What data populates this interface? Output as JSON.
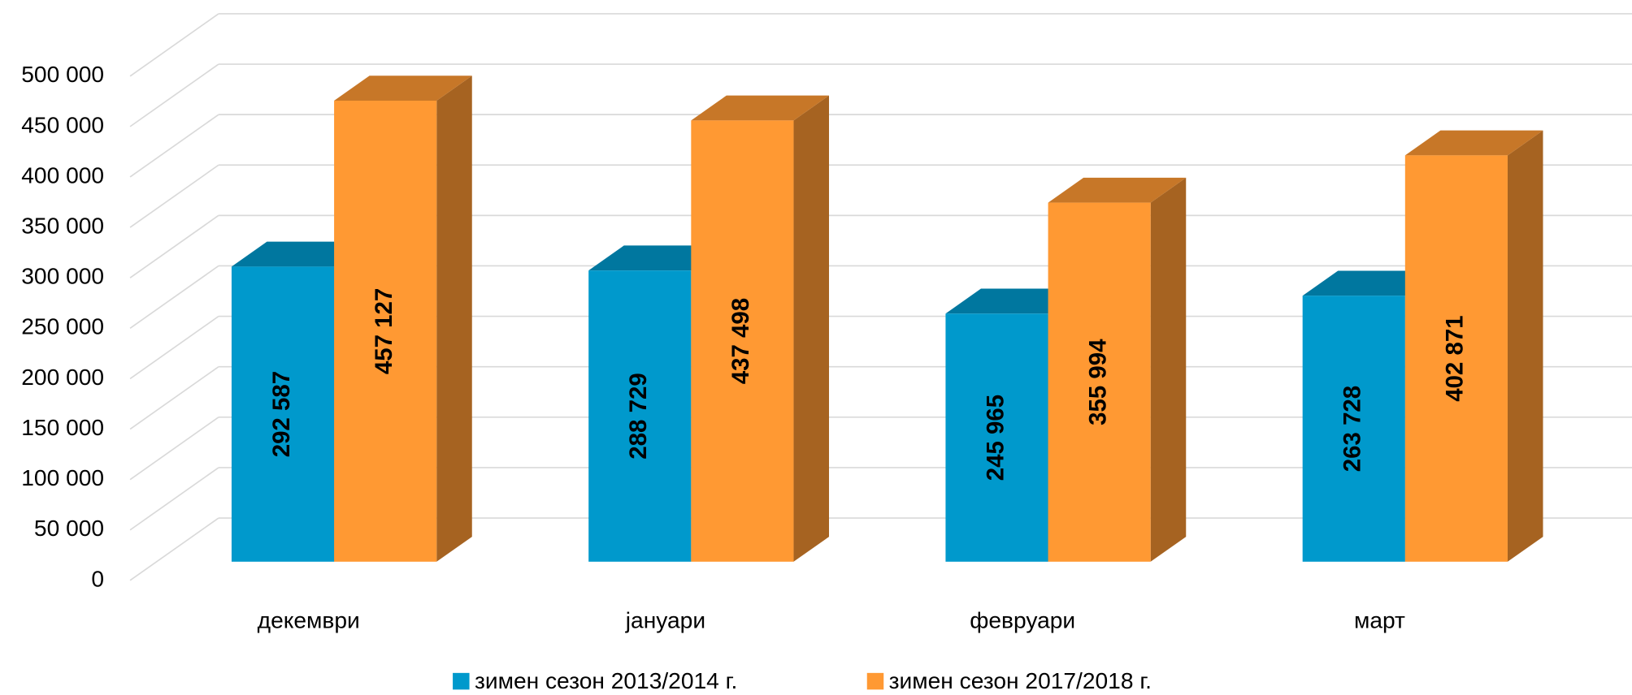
{
  "chart_data": {
    "type": "bar3d",
    "categories": [
      "декември",
      "јануари",
      "февруари",
      "март"
    ],
    "series": [
      {
        "name": "зимен сезон 2013/2014 г.",
        "color": "#0099cc",
        "values": [
          292587,
          288729,
          245965,
          263728
        ],
        "value_labels": [
          "292 587",
          "288 729",
          "245 965",
          "263 728"
        ]
      },
      {
        "name": "зимен сезон 2017/2018 г.",
        "color": "#ff9933",
        "values": [
          457127,
          437498,
          355994,
          402871
        ],
        "value_labels": [
          "457 127",
          "437 498",
          "355 994",
          "402 871"
        ]
      }
    ],
    "ylim": [
      0,
      500000
    ],
    "yticks": [
      0,
      {
        "value": 50000,
        "label": "50 000"
      },
      {
        "value": 100000,
        "label": "100 000"
      },
      {
        "value": 150000,
        "label": "150 000"
      },
      {
        "value": 200000,
        "label": "200 000"
      },
      {
        "value": 250000,
        "label": "250 000"
      },
      {
        "value": 300000,
        "label": "300 000"
      },
      {
        "value": 350000,
        "label": "350 000"
      },
      {
        "value": 400000,
        "label": "400 000"
      },
      {
        "value": 450000,
        "label": "450 000"
      },
      {
        "value": 500000,
        "label": "500 000"
      }
    ],
    "grid": true,
    "legend": "bottom"
  }
}
